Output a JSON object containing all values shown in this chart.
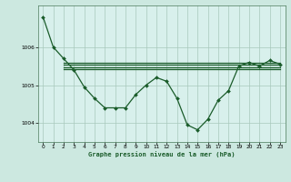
{
  "title": "Graphe pression niveau de la mer (hPa)",
  "background_color": "#cce8e0",
  "plot_bg_color": "#d8f0ec",
  "line_color": "#1a5c2a",
  "grid_color": "#a8c8bc",
  "xlim": [
    -0.5,
    23.5
  ],
  "ylim": [
    1003.5,
    1007.1
  ],
  "yticks": [
    1004,
    1005,
    1006
  ],
  "xticks": [
    0,
    1,
    2,
    3,
    4,
    5,
    6,
    7,
    8,
    9,
    10,
    11,
    12,
    13,
    14,
    15,
    16,
    17,
    18,
    19,
    20,
    21,
    22,
    23
  ],
  "main_series_x": [
    0,
    1,
    2,
    3,
    4,
    5,
    6,
    7,
    8,
    9,
    10,
    11,
    12,
    13,
    14,
    15,
    16,
    17,
    18,
    19,
    20,
    21,
    22,
    23
  ],
  "main_series_y": [
    1006.8,
    1006.0,
    1005.7,
    1005.4,
    1004.95,
    1004.65,
    1004.4,
    1004.4,
    1004.4,
    1004.75,
    1005.0,
    1005.2,
    1005.1,
    1004.65,
    1003.95,
    1003.82,
    1004.1,
    1004.6,
    1004.85,
    1005.5,
    1005.6,
    1005.5,
    1005.65,
    1005.55
  ],
  "flat1_y": 1005.58,
  "flat2_y": 1005.53,
  "flat3_y": 1005.48,
  "flat4_y": 1005.43,
  "flat_x_start": 2,
  "flat_x_end": 23
}
